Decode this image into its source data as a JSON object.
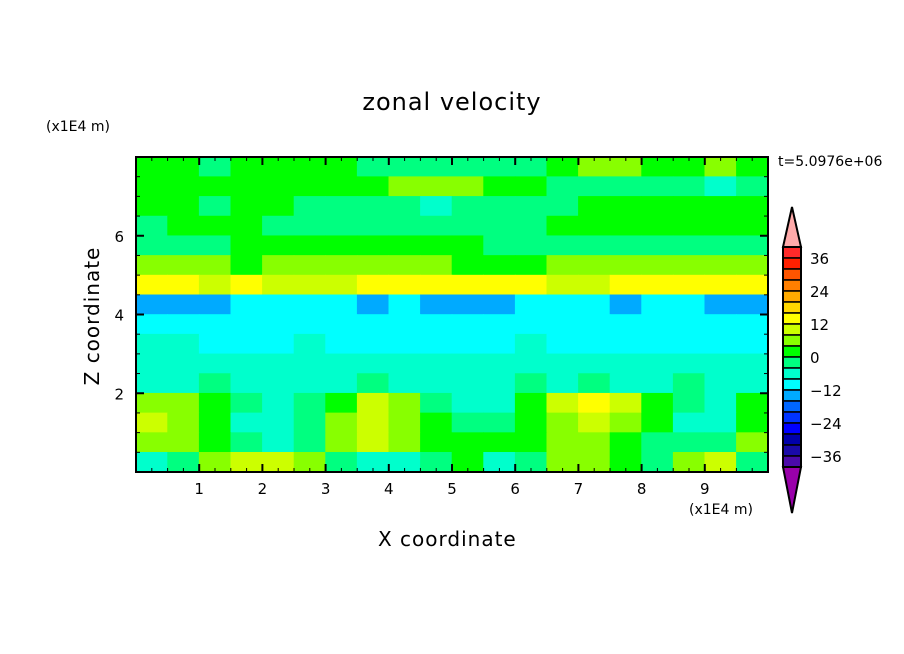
{
  "chart_data": {
    "type": "heatmap",
    "title": "zonal velocity",
    "xlabel": "X coordinate",
    "ylabel": "Z coordinate",
    "x_unit_label": "(x1E4 m)",
    "y_unit_label": "(x1E4 m)",
    "annotation": "t=5.0976e+06",
    "xlim": [
      0,
      10
    ],
    "ylim": [
      0,
      8
    ],
    "x_ticks": [
      1,
      2,
      3,
      4,
      5,
      6,
      7,
      8,
      9
    ],
    "y_ticks": [
      2,
      4,
      6
    ],
    "grid": false,
    "x_cells": [
      0,
      0.5,
      1,
      1.5,
      2,
      2.5,
      3,
      3.5,
      4,
      4.5,
      5,
      5.5,
      6,
      6.5,
      7,
      7.5,
      8,
      8.5,
      9,
      9.5
    ],
    "z_rows_top_down": [
      7.5,
      7,
      6.5,
      6,
      5.5,
      5,
      4.5,
      4,
      3.5,
      3,
      2.5,
      2,
      1.5,
      1,
      0.5,
      0
    ],
    "values": [
      [
        2,
        2,
        -2,
        2,
        2,
        2,
        2,
        -2,
        -2,
        -2,
        -2,
        -2,
        -2,
        2,
        6,
        6,
        2,
        2,
        6,
        2
      ],
      [
        2,
        2,
        2,
        2,
        2,
        2,
        2,
        2,
        6,
        6,
        6,
        2,
        2,
        -2,
        -2,
        -2,
        -2,
        -2,
        -6,
        -2
      ],
      [
        2,
        2,
        -2,
        2,
        2,
        -2,
        -2,
        -2,
        -2,
        -6,
        -2,
        -2,
        -2,
        -2,
        2,
        2,
        2,
        2,
        2,
        2
      ],
      [
        -2,
        2,
        2,
        2,
        -2,
        -2,
        -2,
        -2,
        -2,
        -2,
        -2,
        -2,
        -2,
        2,
        2,
        2,
        2,
        2,
        2,
        2
      ],
      [
        -2,
        -2,
        -2,
        2,
        2,
        2,
        2,
        2,
        2,
        2,
        2,
        -2,
        -2,
        -2,
        -2,
        -2,
        -2,
        -2,
        -2,
        -2
      ],
      [
        6,
        6,
        6,
        2,
        6,
        6,
        6,
        6,
        6,
        6,
        2,
        2,
        2,
        6,
        6,
        6,
        6,
        6,
        6,
        6
      ],
      [
        14,
        14,
        10,
        14,
        10,
        10,
        10,
        14,
        14,
        14,
        14,
        14,
        14,
        10,
        10,
        14,
        14,
        14,
        14,
        14
      ],
      [
        -14,
        -14,
        -14,
        -10,
        -10,
        -10,
        -10,
        -14,
        -10,
        -14,
        -14,
        -14,
        -10,
        -10,
        -10,
        -14,
        -10,
        -10,
        -14,
        -14
      ],
      [
        -10,
        -10,
        -10,
        -10,
        -10,
        -10,
        -10,
        -10,
        -10,
        -10,
        -10,
        -10,
        -10,
        -10,
        -10,
        -10,
        -10,
        -10,
        -10,
        -10
      ],
      [
        -6,
        -6,
        -10,
        -10,
        -10,
        -6,
        -10,
        -10,
        -10,
        -10,
        -10,
        -10,
        -6,
        -10,
        -10,
        -10,
        -10,
        -10,
        -10,
        -10
      ],
      [
        -6,
        -6,
        -6,
        -6,
        -6,
        -6,
        -6,
        -6,
        -6,
        -6,
        -6,
        -6,
        -6,
        -6,
        -6,
        -6,
        -6,
        -6,
        -6,
        -6
      ],
      [
        -6,
        -6,
        -2,
        -6,
        -6,
        -6,
        -6,
        -2,
        -6,
        -6,
        -6,
        -6,
        -2,
        -6,
        -2,
        -6,
        -6,
        -2,
        -6,
        -6
      ],
      [
        6,
        6,
        2,
        -2,
        -6,
        -2,
        2,
        10,
        6,
        -2,
        -6,
        -6,
        2,
        10,
        14,
        10,
        2,
        -2,
        -6,
        2
      ],
      [
        10,
        6,
        2,
        -6,
        -6,
        -2,
        6,
        10,
        6,
        2,
        -2,
        -2,
        2,
        6,
        10,
        6,
        2,
        -6,
        -6,
        2
      ],
      [
        6,
        6,
        2,
        -2,
        -6,
        -2,
        6,
        10,
        6,
        2,
        2,
        2,
        2,
        6,
        6,
        2,
        -2,
        -2,
        -2,
        6
      ],
      [
        -6,
        -2,
        6,
        10,
        10,
        6,
        -2,
        -6,
        -6,
        -2,
        2,
        -6,
        -2,
        6,
        6,
        2,
        -2,
        6,
        10,
        -2
      ]
    ],
    "colorbar": {
      "levels": [
        -40,
        -36,
        -32,
        -28,
        -24,
        -20,
        -16,
        -12,
        -8,
        -4,
        0,
        4,
        8,
        12,
        16,
        20,
        24,
        28,
        32,
        36,
        40
      ],
      "tick_labels": [
        "36",
        "24",
        "12",
        "0",
        "-12",
        "-24",
        "-36"
      ],
      "colors_low_to_high": [
        "#4b0aa8",
        "#1a0aa8",
        "#0000aa",
        "#0000ff",
        "#0033ff",
        "#0066ff",
        "#00aaff",
        "#00ffff",
        "#00ffcc",
        "#00ff80",
        "#00ff00",
        "#88ff00",
        "#ccff00",
        "#ffff00",
        "#ffd700",
        "#ffaa00",
        "#ff7f00",
        "#ff5500",
        "#ff2000",
        "#ff2a2a"
      ],
      "under_color": "#9900aa",
      "over_color": "#ffaaaa"
    }
  }
}
